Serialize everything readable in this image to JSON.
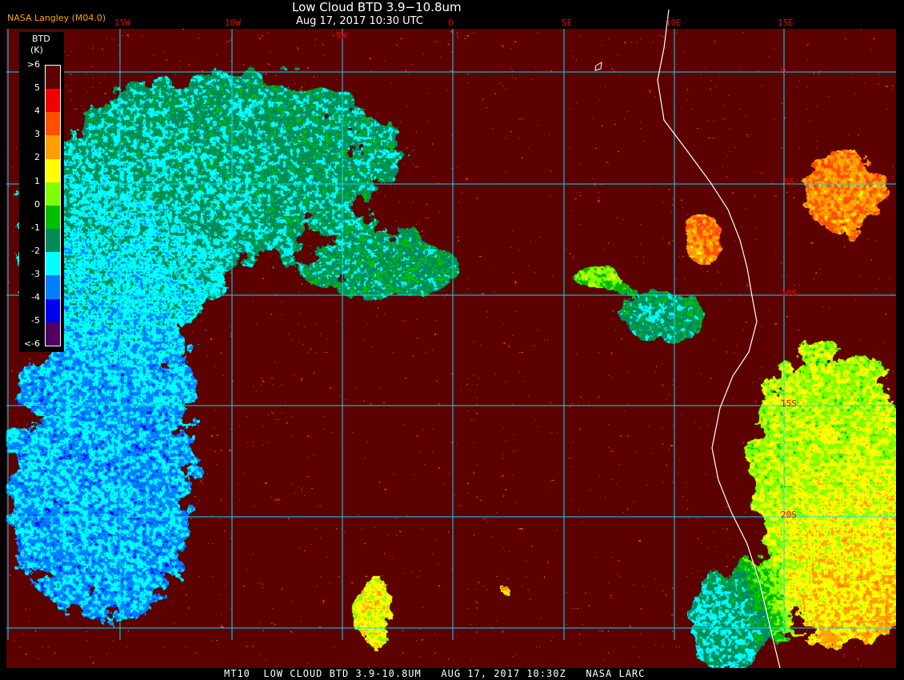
{
  "header": {
    "title": "Low Cloud BTD 3.9−10.8um",
    "subtitle": "Aug 17, 2017 10:30 UTC",
    "credit": "NASA Langley (M04.0)"
  },
  "grid": {
    "longitudes": [
      "15W",
      "10W",
      "5W",
      "0",
      "5E",
      "10E",
      "15E"
    ],
    "latitudes": [
      "0",
      "5S",
      "10S",
      "15S",
      "20S"
    ],
    "grid_color": "#00e0ff",
    "label_color": "#f00000",
    "coast_color": "#ffffff"
  },
  "legend": {
    "title": "BTD",
    "unit": "(K)",
    "labels": [
      ">6",
      "5",
      "4",
      "3",
      "2",
      "1",
      "0",
      "-1",
      "-2",
      "-3",
      "-4",
      "-5",
      "<-6"
    ],
    "colors": [
      "#5c0000",
      "#f00000",
      "#ff5000",
      "#ffa000",
      "#ffff00",
      "#80ff00",
      "#00c000",
      "#008c5a",
      "#00ffff",
      "#0080ff",
      "#0000f0",
      "#500060"
    ]
  },
  "footer": {
    "text": "MT10  LOW CLOUD BTD 3.9-10.8UM   AUG 17, 2017 10:30Z   NASA LARC"
  }
}
